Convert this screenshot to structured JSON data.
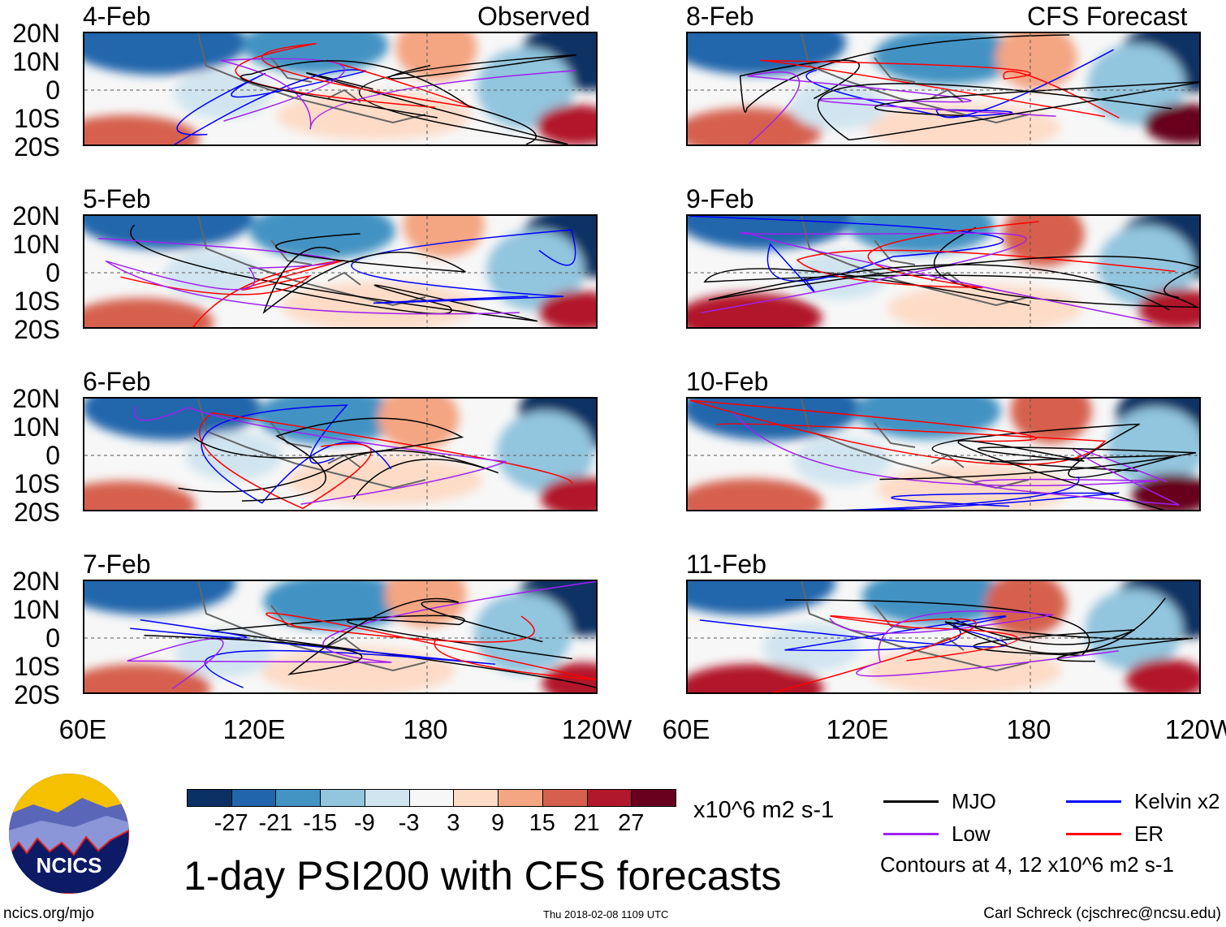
{
  "title": "1-day PSI200 with CFS forecasts",
  "observed_label": "Observed",
  "forecast_label": "CFS Forecast",
  "panels_left": [
    {
      "date": "4-Feb"
    },
    {
      "date": "5-Feb"
    },
    {
      "date": "6-Feb"
    },
    {
      "date": "7-Feb"
    }
  ],
  "panels_right": [
    {
      "date": "8-Feb"
    },
    {
      "date": "9-Feb"
    },
    {
      "date": "10-Feb"
    },
    {
      "date": "11-Feb"
    }
  ],
  "lat_labels": [
    "20N",
    "10N",
    "0",
    "10S",
    "20S"
  ],
  "lon_labels": [
    "60E",
    "120E",
    "180",
    "120W"
  ],
  "colorbar": {
    "colors": [
      "#0b3064",
      "#2166ac",
      "#4393c3",
      "#92c5de",
      "#d1e5f0",
      "#f7f7f7",
      "#fddbc7",
      "#f4a582",
      "#d6604d",
      "#b2182b",
      "#67001f"
    ],
    "labels": [
      "-27",
      "-21",
      "-15",
      "-9",
      "-3",
      "3",
      "9",
      "15",
      "21",
      "27"
    ],
    "units": "x10^6 m2 s-1"
  },
  "legend": [
    {
      "label": "MJO",
      "color": "#000000"
    },
    {
      "label": "Kelvin x2",
      "color": "#0000ff"
    },
    {
      "label": "Low",
      "color": "#a020f0"
    },
    {
      "label": "ER",
      "color": "#ff0000"
    }
  ],
  "contour_note": "Contours at 4, 12 x10^6 m2 s-1",
  "logo_text": "NCICS",
  "footer": {
    "url": "ncics.org/mjo",
    "timestamp": "Thu 2018-02-08 1109 UTC",
    "author": "Carl Schreck (cjschrec@ncsu.edu)"
  }
}
